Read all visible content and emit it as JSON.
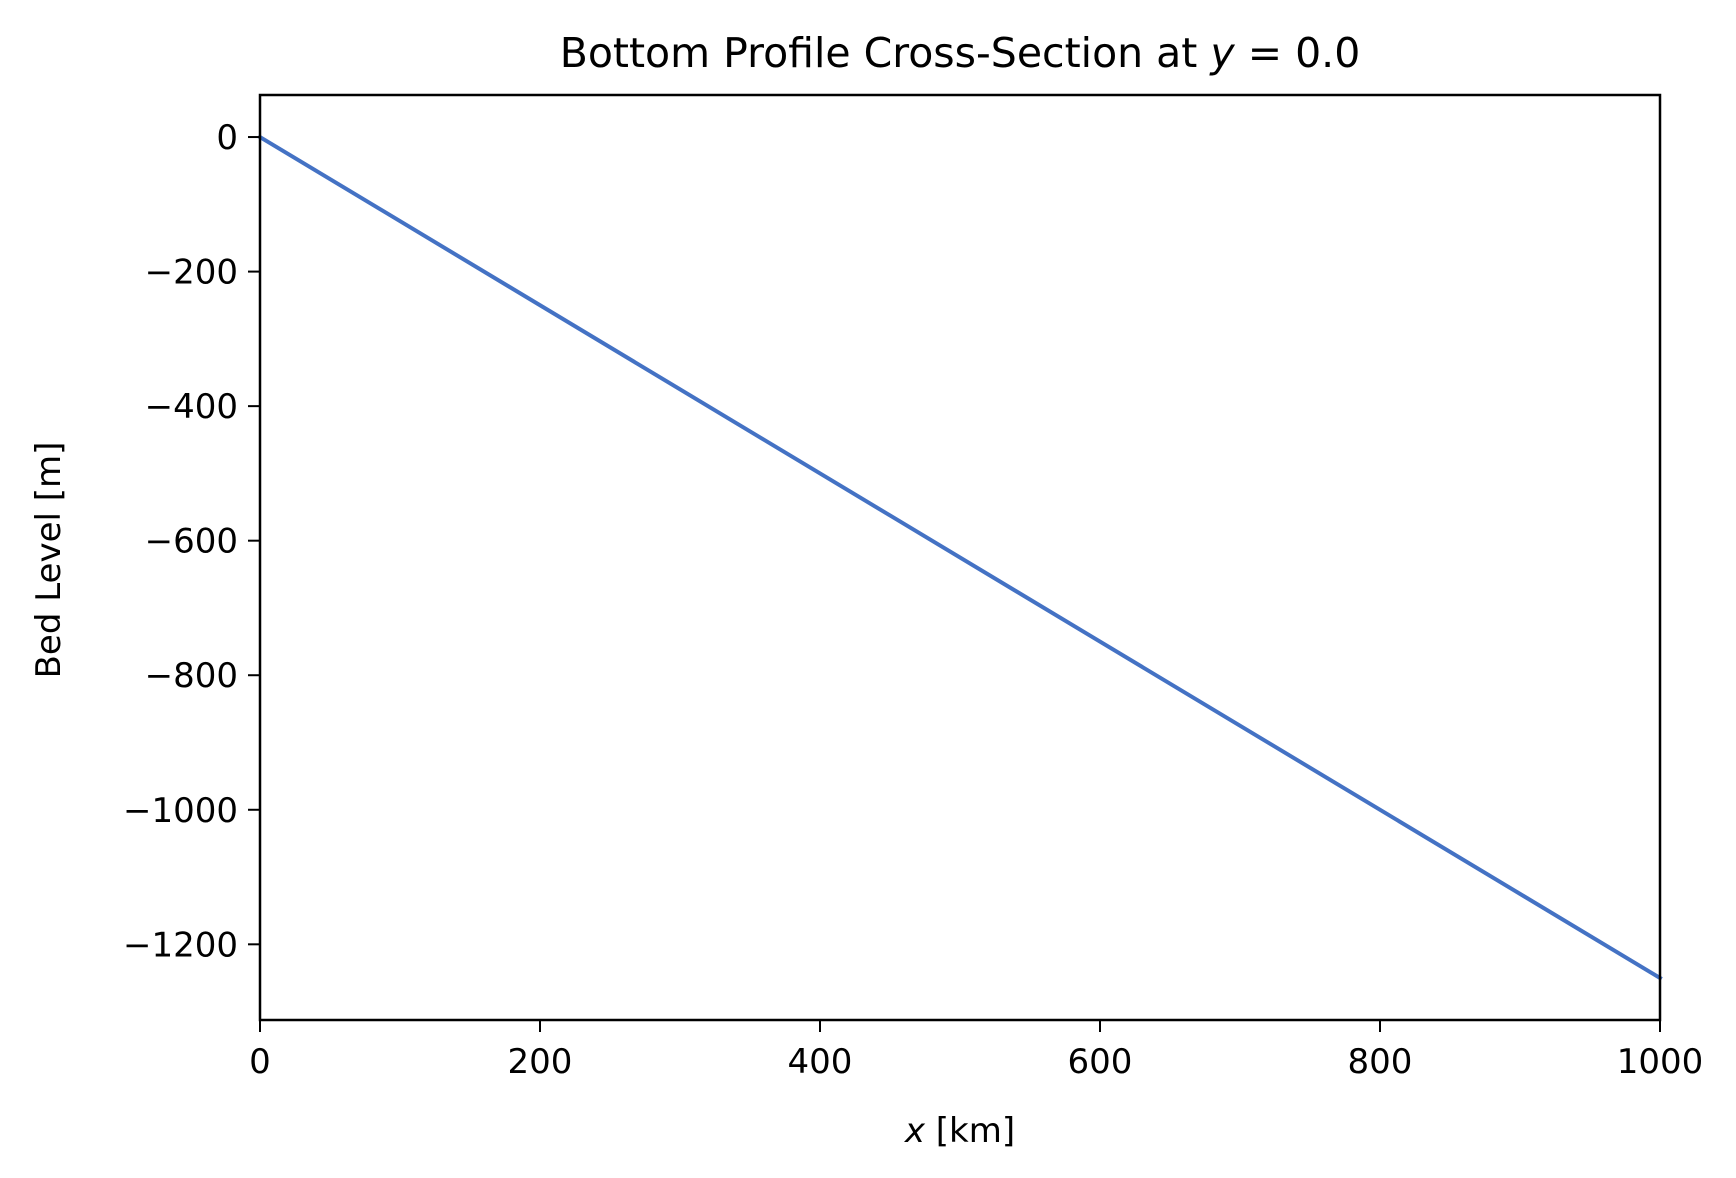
{
  "chart_data": {
    "type": "line",
    "title": {
      "prefix": "Bottom Profile Cross-Section at ",
      "var": "y",
      "suffix": " = 0.0"
    },
    "xlabel": {
      "var": "x",
      "suffix": " [km]"
    },
    "ylabel": "Bed Level [m]",
    "xlim": [
      0,
      1000
    ],
    "ylim": [
      -1312.5,
      62.5
    ],
    "xticks": [
      0,
      200,
      400,
      600,
      800,
      1000
    ],
    "xtick_labels": [
      "0",
      "200",
      "400",
      "600",
      "800",
      "1000"
    ],
    "yticks": [
      0,
      -200,
      -400,
      -600,
      -800,
      -1000,
      -1200
    ],
    "ytick_labels": [
      "0",
      "−200",
      "−400",
      "−600",
      "−800",
      "−1000",
      "−1200"
    ],
    "grid": false,
    "series": [
      {
        "name": "bed level",
        "color": "#4472c4",
        "x": [
          0,
          1000
        ],
        "y": [
          0,
          -1250
        ]
      }
    ]
  }
}
